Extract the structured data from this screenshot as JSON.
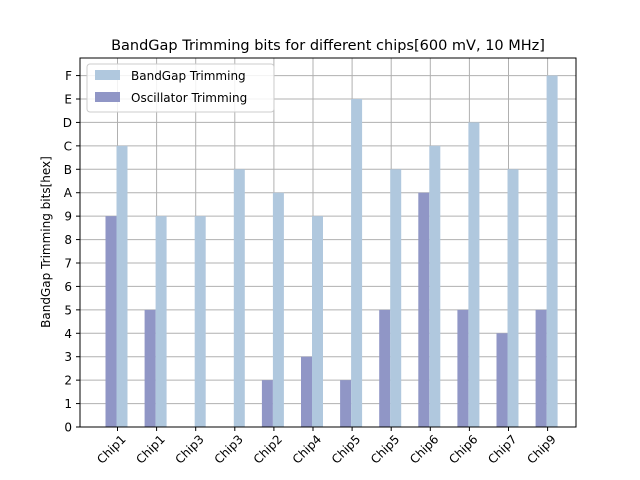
{
  "chart_data": {
    "type": "bar",
    "title": "BandGap Trimming bits for different chips[600 mV, 10 MHz]",
    "xlabel": "",
    "ylabel": "BandGap Trimming bits[hex]",
    "categories": [
      "Chip1",
      "Chip1",
      "Chip3",
      "Chip3",
      "Chip2",
      "Chip4",
      "Chip5",
      "Chip5",
      "Chip6",
      "Chip6",
      "Chip7",
      "Chip9"
    ],
    "y_ticks": [
      "0",
      "1",
      "2",
      "3",
      "4",
      "5",
      "6",
      "7",
      "8",
      "9",
      "A",
      "B",
      "C",
      "D",
      "E",
      "F"
    ],
    "ylim": [
      0,
      15.75
    ],
    "grid": true,
    "legend_position": "top-left",
    "series": [
      {
        "name": "BandGap Trimming",
        "color": "#b0c8de",
        "values": [
          12,
          9,
          9,
          11,
          10,
          9,
          14,
          11,
          12,
          13,
          11,
          15
        ]
      },
      {
        "name": "Oscillator Trimming",
        "color": "#9096c6",
        "values": [
          9,
          5,
          0,
          0,
          2,
          3,
          2,
          5,
          10,
          5,
          4,
          5
        ]
      }
    ]
  }
}
